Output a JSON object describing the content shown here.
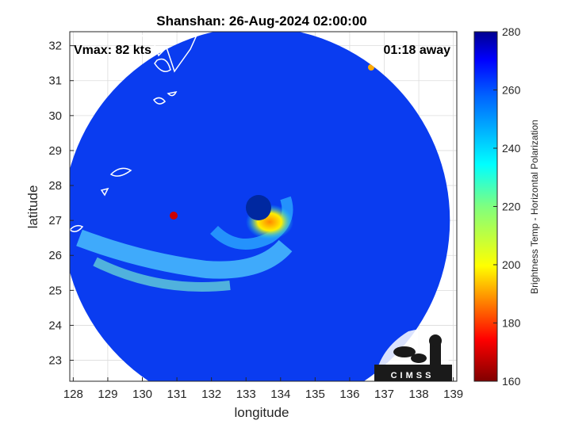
{
  "chart_data": {
    "type": "heatmap",
    "title": "Shanshan: 26-Aug-2024 02:00:00",
    "xlabel": "longitude",
    "ylabel": "latitude",
    "xlim": [
      127.9,
      139.1
    ],
    "ylim": [
      22.4,
      32.4
    ],
    "xticks": [
      128,
      129,
      130,
      131,
      132,
      133,
      134,
      135,
      136,
      137,
      138,
      139
    ],
    "yticks": [
      23,
      24,
      25,
      26,
      27,
      28,
      29,
      30,
      31,
      32
    ],
    "grid": true,
    "annotations": {
      "vmax": "Vmax: 82 kts",
      "time_offset": "01:18 away"
    },
    "storm_center": {
      "lon": 133.3,
      "lat": 27.3
    },
    "scan_circle": {
      "center_lon": 133.3,
      "center_lat": 27.0,
      "radius_deg": 5.6
    },
    "colorbar": {
      "label": "Brightness Temp - Horizontal Polarization",
      "min": 160,
      "max": 280,
      "ticks": [
        160,
        180,
        200,
        220,
        240,
        260,
        280
      ],
      "colormap": "jet"
    },
    "logo": "CIMSS"
  }
}
